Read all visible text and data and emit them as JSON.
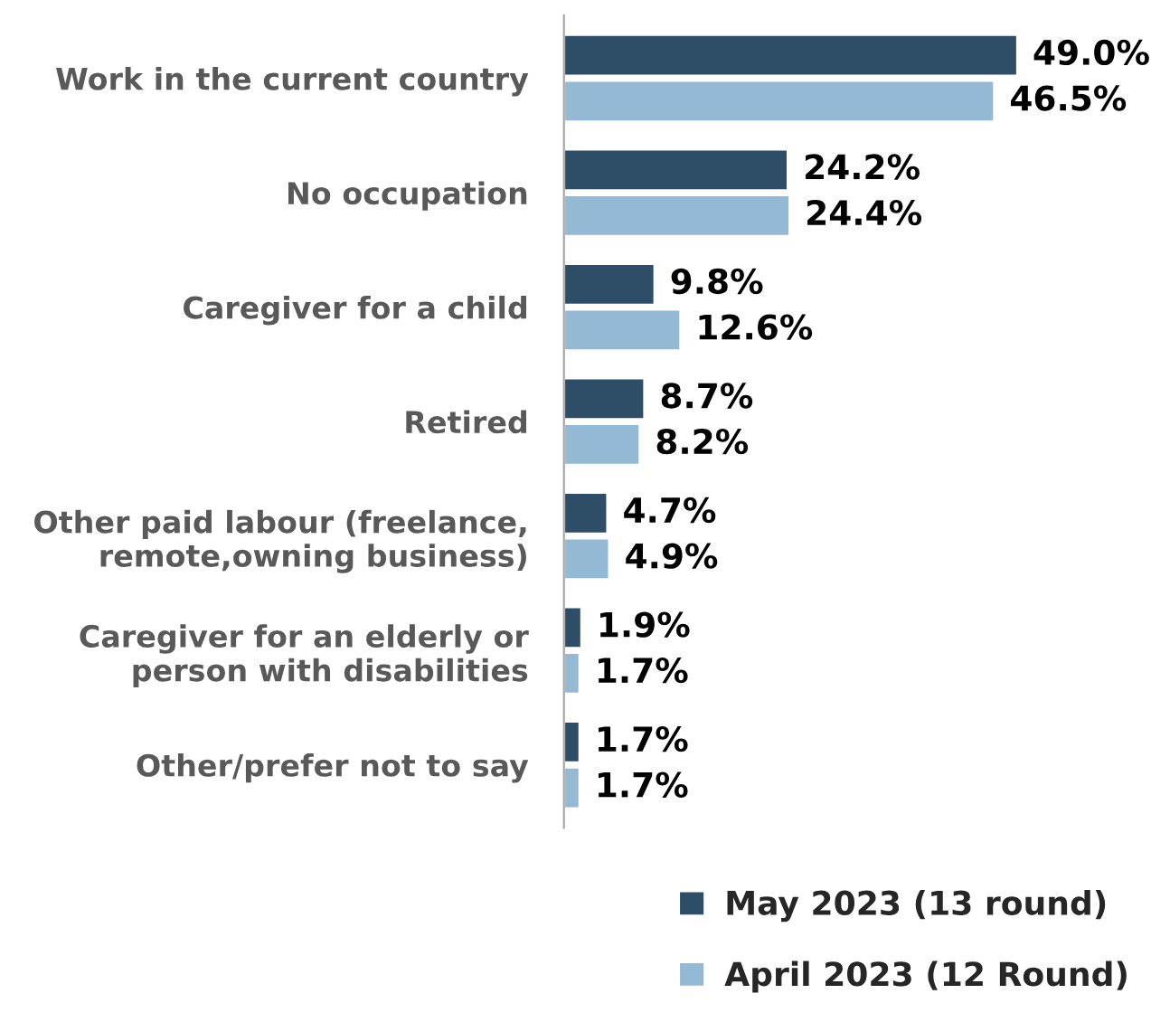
{
  "chart_data": {
    "type": "bar",
    "orientation": "horizontal",
    "categories": [
      "Work in the current country",
      "No occupation",
      "Caregiver for a child",
      "Retired",
      "Other paid labour (freelance,\nremote,owning business)",
      "Caregiver for an elderly or\nperson with disabilities",
      "Other/prefer not to say"
    ],
    "series": [
      {
        "name": "May 2023 (13 round)",
        "color": "#2e4d66",
        "values": [
          49.0,
          24.2,
          9.8,
          8.7,
          4.7,
          1.9,
          1.7
        ],
        "value_labels": [
          "49.0%",
          "24.2%",
          "9.8%",
          "8.7%",
          "4.7%",
          "1.9%",
          "1.7%"
        ]
      },
      {
        "name": "April 2023 (12 Round)",
        "color": "#93b9d4",
        "values": [
          46.5,
          24.4,
          12.6,
          8.2,
          4.9,
          1.7,
          1.7
        ],
        "value_labels": [
          "46.5%",
          "24.4%",
          "12.6%",
          "8.2%",
          "4.9%",
          "1.7%",
          "1.7%"
        ]
      }
    ],
    "legend": "bottom right",
    "grid": false
  }
}
